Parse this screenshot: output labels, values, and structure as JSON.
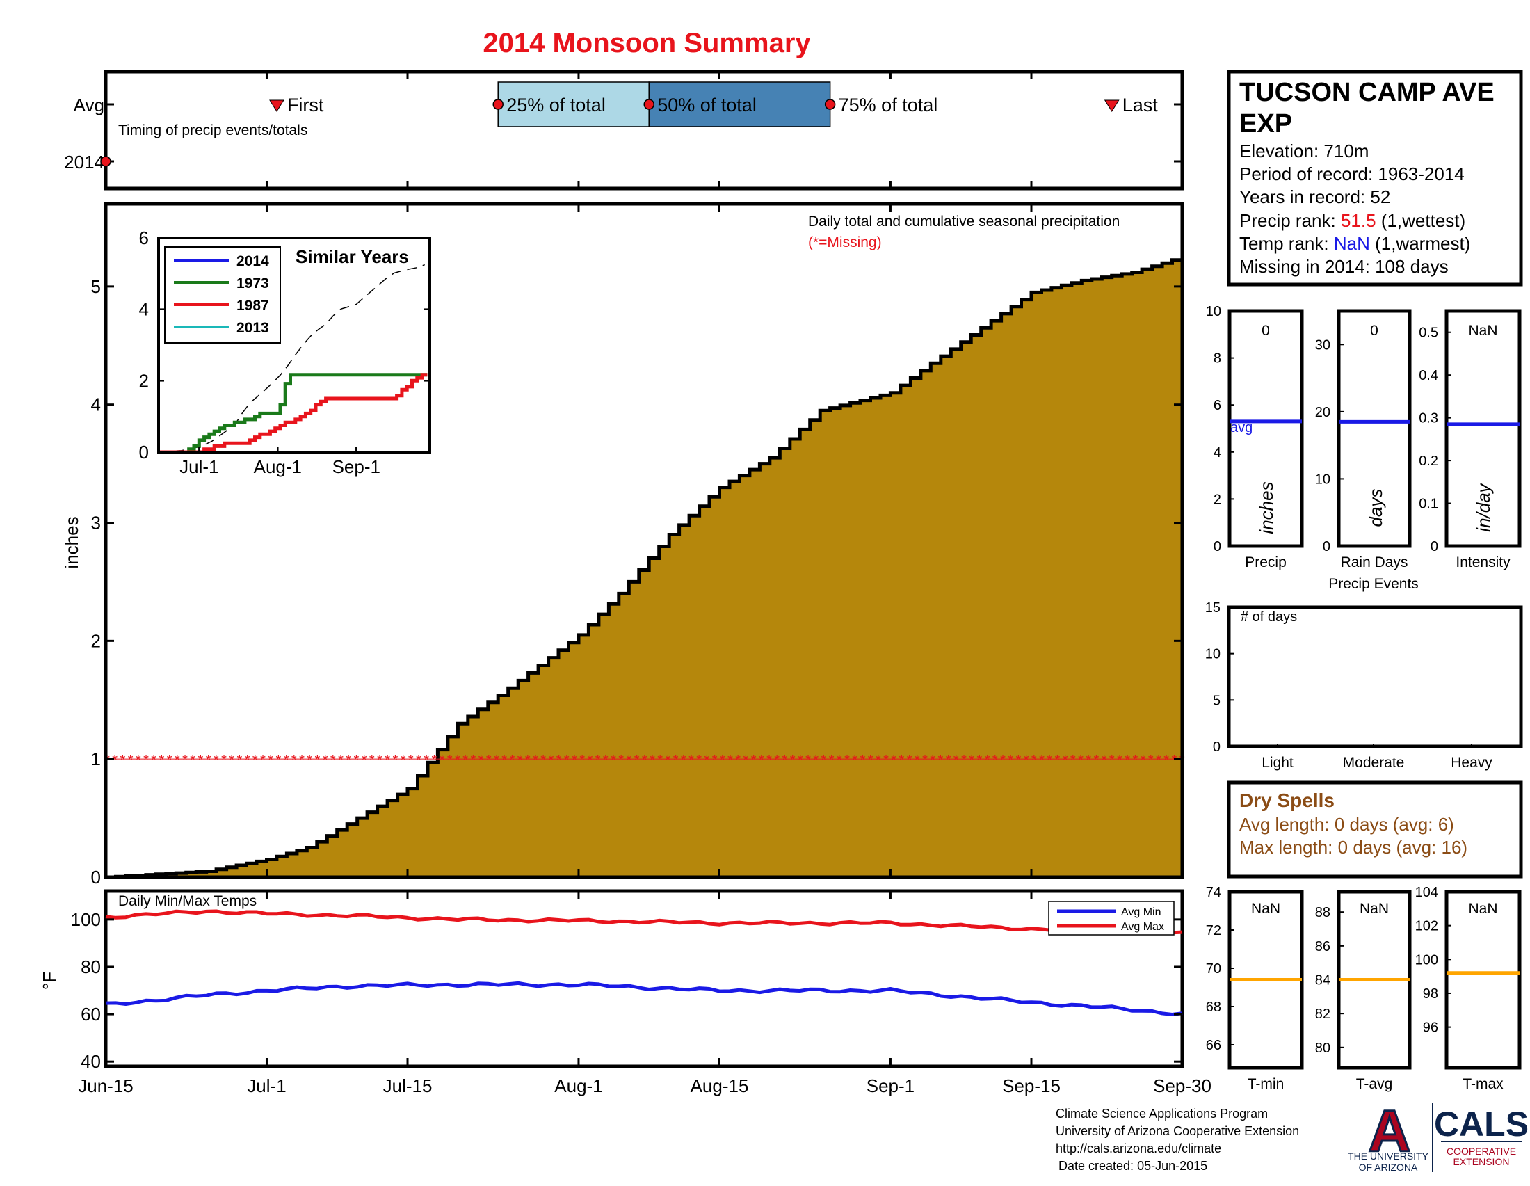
{
  "title": "2014 Monsoon Summary",
  "colors": {
    "title": "#e8141c",
    "fill_brown": "#b5870c",
    "q25": "#add8e6",
    "q50": "#4682b4",
    "red": "#e8141c",
    "blue": "#1a1ae6",
    "green": "#1a7a1a",
    "cyan": "#1ab8b8",
    "orange": "#ffa500",
    "dry_spell": "#8b4c15",
    "ua_navy": "#0c234b",
    "ua_red": "#ab0520"
  },
  "timing": {
    "row_avg": "Avg",
    "row_2014": "2014",
    "subtitle": "Timing of precip events/totals",
    "first": "First",
    "q25": "25% of total",
    "q50": "50% of total",
    "q75": "75% of total",
    "last": "Last",
    "markers_dates": {
      "first": "2014-07-02",
      "q25": "2014-07-24",
      "q50": "2014-08-08",
      "q75": "2014-08-26",
      "last": "2014-09-23",
      "2014_marker": "2014-06-15"
    }
  },
  "main": {
    "annotation1": "Daily total and cumulative seasonal precipitation",
    "annotation2": "(*=Missing)",
    "ylabel": "inches",
    "ylim": [
      0,
      5.7
    ],
    "yticks": [
      "0",
      "1",
      "2",
      "3",
      "4",
      "5"
    ],
    "xticks": [
      "Jun-15",
      "Jul-1",
      "Jul-15",
      "Aug-1",
      "Aug-15",
      "Sep-1",
      "Sep-15",
      "Sep-30"
    ],
    "missing_marker_y": 1
  },
  "inset": {
    "title": "Similar Years",
    "legend": [
      "2014",
      "1973",
      "1987",
      "2013"
    ],
    "yticks": [
      "0",
      "2",
      "4",
      "6"
    ],
    "xticks": [
      "Jul-1",
      "Aug-1",
      "Sep-1"
    ]
  },
  "temps": {
    "title": "Daily Min/Max Temps",
    "ylabel": "°F",
    "yticks": [
      "40",
      "60",
      "80",
      "100"
    ],
    "legend_min": "Avg Min",
    "legend_max": "Avg Max"
  },
  "station": {
    "name_line1": "TUCSON CAMP AVE",
    "name_line2": "EXP",
    "elevation": "Elevation: 710m",
    "period": "Period of record: 1963-2014",
    "years": "Years in record: 52",
    "precip_rank_label": "Precip rank:",
    "precip_rank_value": "51.5",
    "precip_rank_note": "(1,wettest)",
    "temp_rank_label": "Temp rank:",
    "temp_rank_value": "NaN",
    "temp_rank_note": "(1,warmest)",
    "missing": "Missing in 2014: 108 days"
  },
  "precip_events": {
    "caption": "Precip Events",
    "panels": [
      {
        "label": "Precip",
        "unit": "inches",
        "value": "0",
        "ticks": [
          "0",
          "2",
          "4",
          "6",
          "8",
          "10"
        ],
        "avg_label": "avg",
        "avg_value": 5.3,
        "ymax": 10
      },
      {
        "label": "Rain Days",
        "unit": "days",
        "value": "0",
        "ticks": [
          "0",
          "10",
          "20",
          "30"
        ],
        "avg_value": 18.5,
        "ymax": 35
      },
      {
        "label": "Intensity",
        "unit": "in/day",
        "value": "NaN",
        "ticks": [
          "0",
          "0.1",
          "0.2",
          "0.3",
          "0.4",
          "0.5"
        ],
        "avg_value": 0.285,
        "ymin": 0,
        "ymax": 0.55
      }
    ]
  },
  "intensity_days": {
    "label": "# of days",
    "ticks": [
      "0",
      "5",
      "10",
      "15"
    ],
    "categories": [
      "Light",
      "Moderate",
      "Heavy"
    ]
  },
  "dry_spells": {
    "title": "Dry Spells",
    "avg": "Avg length: 0 days (avg: 6)",
    "max": "Max length: 0 days (avg: 16)"
  },
  "temp_panels": [
    {
      "label": "T-min",
      "value": "NaN",
      "ticks": [
        "66",
        "68",
        "70",
        "72",
        "74"
      ],
      "avg_value": 69.4,
      "ymin": 64.8,
      "ymax": 74
    },
    {
      "label": "T-avg",
      "value": "NaN",
      "ticks": [
        "80",
        "82",
        "84",
        "86",
        "88"
      ],
      "avg_value": 84.0,
      "ymin": 78.8,
      "ymax": 89.2
    },
    {
      "label": "T-max",
      "value": "NaN",
      "ticks": [
        "96",
        "98",
        "100",
        "102",
        "104"
      ],
      "avg_value": 99.2,
      "ymin": 93.6,
      "ymax": 104
    }
  ],
  "footer": {
    "line1": "Climate Science Applications Program",
    "line2": "University of Arizona Cooperative Extension",
    "line3": "http://cals.arizona.edu/climate",
    "line4": "Date created: 05-Jun-2015",
    "ua_letter": "A",
    "ua_text1": "THE UNIVERSITY",
    "ua_text2": "OF ARIZONA",
    "cals": "CALS",
    "cals_text1": "COOPERATIVE",
    "cals_text2": "EXTENSION"
  },
  "chart_data": [
    {
      "type": "area",
      "title": "Daily total and cumulative seasonal precipitation",
      "ylabel": "inches",
      "x_unit": "date",
      "x": [
        "2014-06-15",
        "2014-06-25",
        "2014-07-01",
        "2014-07-05",
        "2014-07-10",
        "2014-07-15",
        "2014-07-20",
        "2014-07-25",
        "2014-08-01",
        "2014-08-05",
        "2014-08-10",
        "2014-08-15",
        "2014-08-20",
        "2014-08-25",
        "2014-09-01",
        "2014-09-05",
        "2014-09-10",
        "2014-09-15",
        "2014-09-20",
        "2014-09-25",
        "2014-09-30"
      ],
      "values": [
        0.0,
        0.05,
        0.15,
        0.25,
        0.5,
        0.75,
        1.3,
        1.6,
        2.05,
        2.4,
        2.9,
        3.3,
        3.55,
        3.95,
        4.1,
        4.35,
        4.65,
        4.95,
        5.05,
        5.12,
        5.25
      ],
      "ylim": [
        0,
        5.7
      ],
      "missing_marker": 1
    },
    {
      "type": "line",
      "title": "Similar Years",
      "x_unit": "date",
      "series": [
        {
          "name": "1973",
          "x": [
            "2014-06-15",
            "2014-06-25",
            "2014-07-01",
            "2014-07-10",
            "2014-07-20",
            "2014-07-25",
            "2014-08-01",
            "2014-08-05",
            "2014-08-20",
            "2014-09-30"
          ],
          "values": [
            0,
            0,
            0.3,
            0.7,
            0.9,
            1.1,
            1.1,
            2.15,
            2.2,
            2.2
          ]
        },
        {
          "name": "1987",
          "x": [
            "2014-06-15",
            "2014-07-01",
            "2014-07-10",
            "2014-07-20",
            "2014-08-01",
            "2014-08-10",
            "2014-08-20",
            "2014-09-15",
            "2014-09-25",
            "2014-09-30"
          ],
          "values": [
            0,
            0,
            0.2,
            0.3,
            0.7,
            1.0,
            1.5,
            1.5,
            2.1,
            2.2
          ]
        },
        {
          "name": "2014",
          "x": [],
          "values": []
        },
        {
          "name": "2013",
          "x": [],
          "values": []
        }
      ],
      "ylim": [
        0,
        6
      ]
    },
    {
      "type": "line",
      "title": "Daily Min/Max Temps",
      "ylabel": "°F",
      "ylim": [
        38,
        112
      ],
      "x_unit": "date",
      "series": [
        {
          "name": "Avg Min",
          "x": [
            "2014-06-15",
            "2014-06-25",
            "2014-07-01",
            "2014-07-10",
            "2014-07-20",
            "2014-08-01",
            "2014-08-15",
            "2014-09-01",
            "2014-09-15",
            "2014-09-25",
            "2014-09-30"
          ],
          "values": [
            64,
            68,
            70,
            72,
            72.5,
            72.5,
            70,
            70,
            65,
            62,
            60
          ]
        },
        {
          "name": "Avg Max",
          "x": [
            "2014-06-15",
            "2014-06-25",
            "2014-07-01",
            "2014-07-10",
            "2014-07-20",
            "2014-08-01",
            "2014-08-15",
            "2014-09-01",
            "2014-09-15",
            "2014-09-25",
            "2014-09-30"
          ],
          "values": [
            101,
            103.5,
            102.5,
            101.5,
            100,
            99.5,
            98.5,
            98.5,
            96,
            95,
            94
          ]
        }
      ]
    }
  ]
}
